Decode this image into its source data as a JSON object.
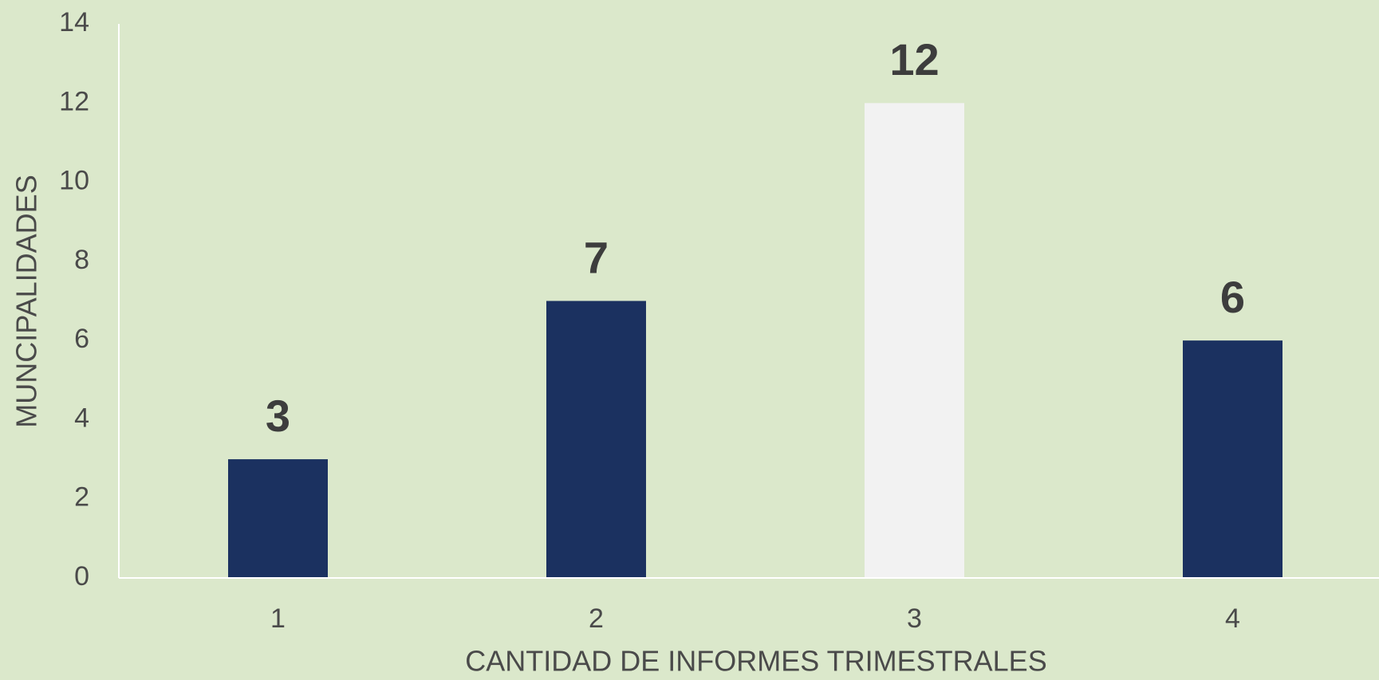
{
  "chart_data": {
    "type": "bar",
    "x_label": "CANTIDAD DE INFORMES TRIMESTRALES",
    "y_label": "MUNCIPALIDADES",
    "categories": [
      "1",
      "2",
      "3",
      "4"
    ],
    "values": [
      3,
      7,
      12,
      6
    ],
    "colors": [
      "#1b3160",
      "#1b3160",
      "#f2f2f2",
      "#1b3160"
    ],
    "ylim": [
      0,
      14
    ],
    "yticks": [
      0,
      2,
      4,
      6,
      8,
      10,
      12,
      14
    ],
    "grid": false
  }
}
